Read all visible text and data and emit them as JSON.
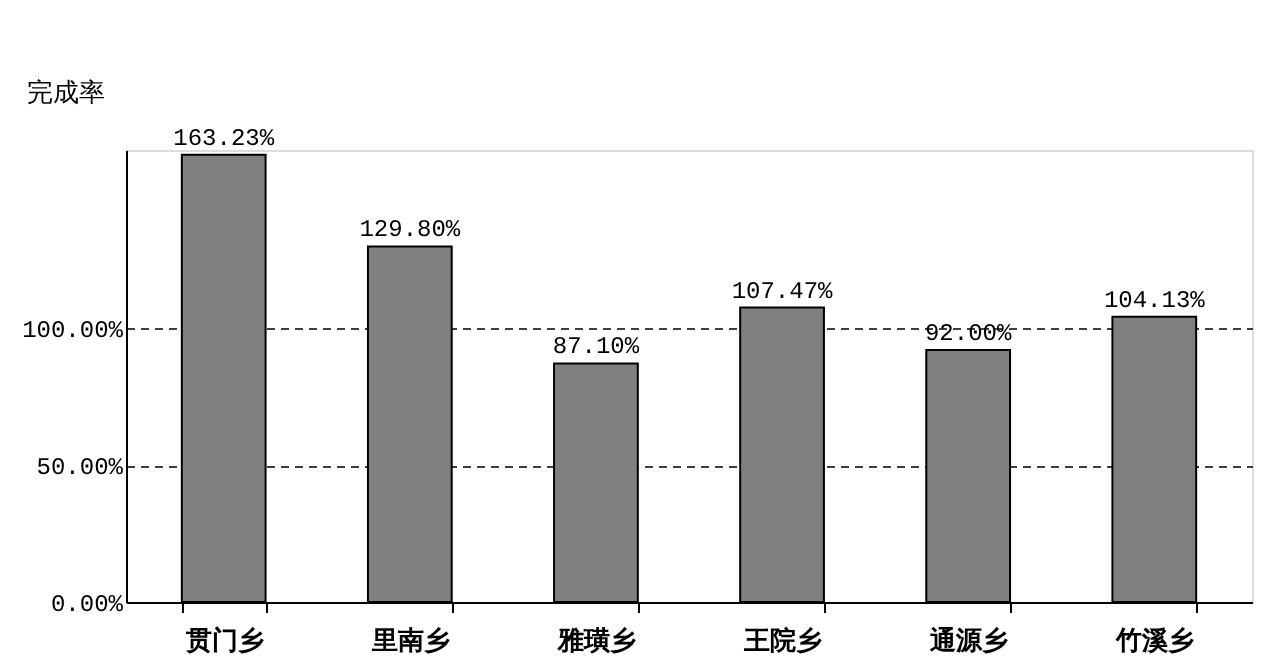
{
  "chart_data": {
    "type": "bar",
    "ylabel": "完成率",
    "categories": [
      "贯门乡",
      "里南乡",
      "雅璜乡",
      "王院乡",
      "通源乡",
      "竹溪乡"
    ],
    "values": [
      163.23,
      129.8,
      87.1,
      107.47,
      92.0,
      104.13
    ],
    "value_labels": [
      "163.23%",
      "129.80%",
      "87.10%",
      "107.47%",
      "92.00%",
      "104.13%"
    ],
    "color": "#808080",
    "ylim": [
      0,
      165
    ],
    "yticks": [
      {
        "value": 0,
        "label": "0.00%"
      },
      {
        "value": 50,
        "label": "50.00%"
      },
      {
        "value": 100,
        "label": "100.00%"
      }
    ],
    "grid": "y"
  }
}
